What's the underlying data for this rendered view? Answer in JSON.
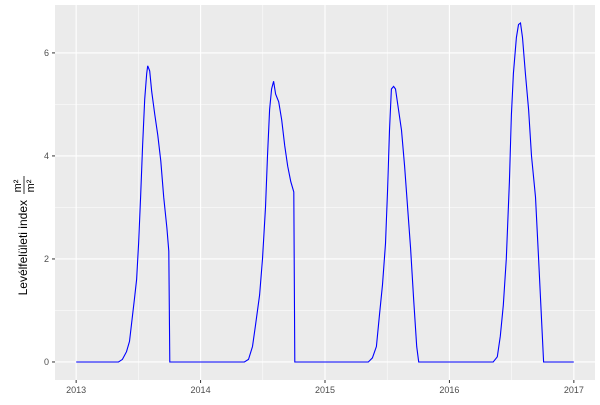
{
  "chart_data": {
    "type": "line",
    "title": "",
    "xlabel": "",
    "ylabel": "Levélfelületi index",
    "ylabel_unit_numerator": "m²",
    "ylabel_unit_denominator": "m²",
    "xlim": [
      2012.83,
      2017.17
    ],
    "ylim": [
      -0.35,
      6.93
    ],
    "x_ticks": [
      2013,
      2014,
      2015,
      2016,
      2017
    ],
    "x_tick_labels": [
      "2013",
      "2014",
      "2015",
      "2016",
      "2017"
    ],
    "y_ticks": [
      0,
      2,
      4,
      6
    ],
    "y_tick_labels": [
      "0",
      "2",
      "4",
      "6"
    ],
    "grid": true,
    "line_color": "#0000ff",
    "panel_background": "#ebebeb",
    "series": [
      {
        "x": [
          2013.0,
          2013.34,
          2013.372,
          2013.405,
          2013.429,
          2013.453,
          2013.47,
          2013.486,
          2013.502,
          2013.518,
          2013.534,
          2013.551,
          2013.567,
          2013.575,
          2013.591,
          2013.607,
          2013.632,
          2013.656,
          2013.68,
          2013.704,
          2013.729,
          2013.745,
          2013.753,
          2014.352,
          2014.385,
          2014.417,
          2014.441,
          2014.474,
          2014.498,
          2014.522,
          2014.538,
          2014.555,
          2014.571,
          2014.587,
          2014.603,
          2014.628,
          2014.652,
          2014.676,
          2014.7,
          2014.725,
          2014.749,
          2014.757,
          2015.348,
          2015.381,
          2015.413,
          2015.437,
          2015.462,
          2015.486,
          2015.502,
          2015.518,
          2015.534,
          2015.551,
          2015.567,
          2015.591,
          2015.615,
          2015.64,
          2015.664,
          2015.688,
          2015.713,
          2015.737,
          2015.753,
          2016.352,
          2016.385,
          2016.409,
          2016.433,
          2016.457,
          2016.482,
          2016.498,
          2016.514,
          2016.538,
          2016.555,
          2016.571,
          2016.587,
          2016.611,
          2016.636,
          2016.66,
          2016.692,
          2016.717,
          2016.741,
          2016.757,
          2017.0
        ],
        "y": [
          0,
          0,
          0.05,
          0.2,
          0.4,
          0.9,
          1.25,
          1.6,
          2.3,
          3.2,
          4.2,
          5.1,
          5.6,
          5.75,
          5.65,
          5.25,
          4.8,
          4.4,
          3.9,
          3.2,
          2.6,
          2.15,
          0,
          0,
          0.05,
          0.3,
          0.7,
          1.3,
          2.0,
          3.0,
          4.0,
          4.9,
          5.3,
          5.45,
          5.2,
          5.05,
          4.7,
          4.2,
          3.8,
          3.5,
          3.3,
          0,
          0,
          0.08,
          0.3,
          0.9,
          1.5,
          2.3,
          3.3,
          4.5,
          5.3,
          5.35,
          5.3,
          4.9,
          4.5,
          3.8,
          3.0,
          2.2,
          1.2,
          0.3,
          0,
          0,
          0.1,
          0.5,
          1.1,
          2.0,
          3.5,
          4.8,
          5.6,
          6.3,
          6.55,
          6.58,
          6.3,
          5.6,
          4.9,
          4.0,
          3.2,
          2.0,
          0.8,
          0,
          0
        ]
      }
    ]
  }
}
